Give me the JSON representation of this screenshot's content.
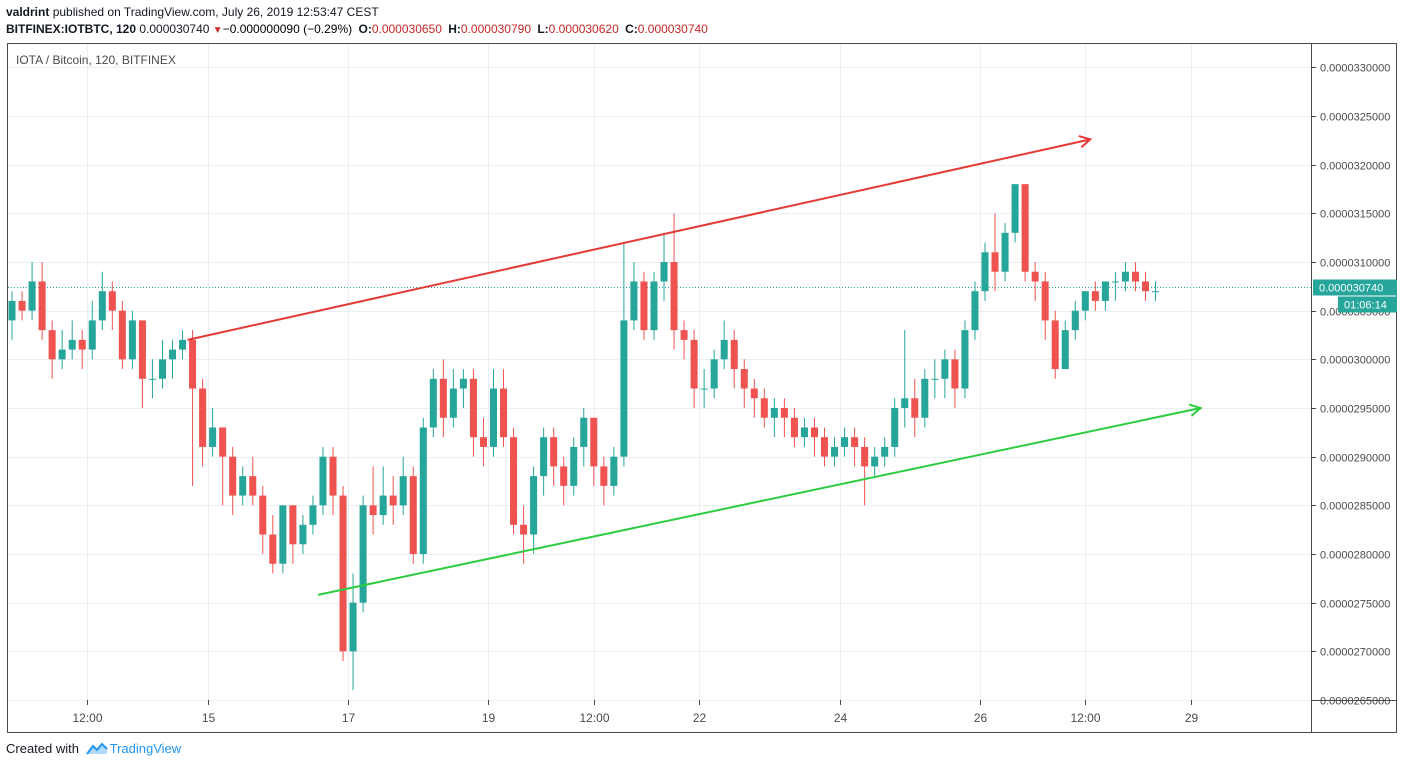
{
  "header": {
    "author": "valdrint",
    "published_text": "published on TradingView.com, July 26, 2019 12:53:47 CEST",
    "symbol": "BITFINEX:IOTBTC, 120",
    "last": "0.000030740",
    "change": "−0.000000090 (−0.29%)",
    "open_label": "O:",
    "open": "0.000030650",
    "high_label": "H:",
    "high": "0.000030790",
    "low_label": "L:",
    "low": "0.000030620",
    "close_label": "C:",
    "close": "0.000030740"
  },
  "footer": {
    "created_with": "Created with",
    "brand": "TradingView"
  },
  "colors": {
    "up": "#26a69a",
    "down": "#ef5350",
    "resistance": "#e53935",
    "support": "#2ecc40",
    "grid": "#e9eff3",
    "price_line": "#26a69a"
  },
  "chart_data": {
    "type": "candlestick",
    "title": "IOTA / Bitcoin, 120, BITFINEX",
    "ylim": [
      2.65e-05,
      3.325e-05
    ],
    "x_range": [
      0,
      130
    ],
    "y_ticks": [
      "0.0000265",
      "0.0000270",
      "0.0000275",
      "0.0000280",
      "0.0000285",
      "0.0000290",
      "0.0000295",
      "0.0000300",
      "0.0000305",
      "0.0000310",
      "0.0000315",
      "0.0000320",
      "0.0000325",
      "0.0000330"
    ],
    "y_tick_labels": [
      "0.0000265000",
      "0.0000270000",
      "0.0000275000",
      "0.0000280000",
      "0.0000285000",
      "0.0000290000",
      "0.0000295000",
      "0.0000300000",
      "0.0000305000",
      "0.0000310000",
      "0.0000315000",
      "0.0000320000",
      "0.0000325000",
      "0.0000330000"
    ],
    "x_ticks": [
      {
        "index": 8,
        "label": "12:00"
      },
      {
        "index": 20,
        "label": "15"
      },
      {
        "index": 34,
        "label": "17"
      },
      {
        "index": 48,
        "label": "19"
      },
      {
        "index": 58.5,
        "label": "12:00"
      },
      {
        "index": 69,
        "label": "22"
      },
      {
        "index": 83,
        "label": "24"
      },
      {
        "index": 97,
        "label": "26"
      },
      {
        "index": 107.5,
        "label": "12:00"
      },
      {
        "index": 118,
        "label": "29"
      }
    ],
    "last_price": 3.074e-05,
    "last_price_label": "0.000030740",
    "countdown": "01:06:14",
    "candles": [
      [
        3.04e-05,
        3.06e-05,
        3.02e-05,
        3.07e-05
      ],
      [
        3.06e-05,
        3.05e-05,
        3.04e-05,
        3.07e-05
      ],
      [
        3.05e-05,
        3.08e-05,
        3.04e-05,
        3.1e-05
      ],
      [
        3.08e-05,
        3.03e-05,
        3.02e-05,
        3.1e-05
      ],
      [
        3.03e-05,
        3e-05,
        2.98e-05,
        3.04e-05
      ],
      [
        3e-05,
        3.01e-05,
        2.99e-05,
        3.03e-05
      ],
      [
        3.01e-05,
        3.02e-05,
        3e-05,
        3.04e-05
      ],
      [
        3.02e-05,
        3.01e-05,
        2.99e-05,
        3.03e-05
      ],
      [
        3.01e-05,
        3.04e-05,
        3e-05,
        3.06e-05
      ],
      [
        3.04e-05,
        3.07e-05,
        3.03e-05,
        3.09e-05
      ],
      [
        3.07e-05,
        3.05e-05,
        3.03e-05,
        3.08e-05
      ],
      [
        3.05e-05,
        3e-05,
        2.99e-05,
        3.06e-05
      ],
      [
        3e-05,
        3.04e-05,
        2.99e-05,
        3.05e-05
      ],
      [
        3.04e-05,
        2.98e-05,
        2.95e-05,
        3.04e-05
      ],
      [
        2.98e-05,
        2.98e-05,
        2.96e-05,
        3e-05
      ],
      [
        2.98e-05,
        3e-05,
        2.97e-05,
        3.02e-05
      ],
      [
        3e-05,
        3.01e-05,
        2.98e-05,
        3.02e-05
      ],
      [
        3.01e-05,
        3.02e-05,
        3e-05,
        3.03e-05
      ],
      [
        3.02e-05,
        2.97e-05,
        2.87e-05,
        3.03e-05
      ],
      [
        2.97e-05,
        2.91e-05,
        2.89e-05,
        2.98e-05
      ],
      [
        2.91e-05,
        2.93e-05,
        2.9e-05,
        2.95e-05
      ],
      [
        2.93e-05,
        2.9e-05,
        2.85e-05,
        2.93e-05
      ],
      [
        2.9e-05,
        2.86e-05,
        2.84e-05,
        2.91e-05
      ],
      [
        2.86e-05,
        2.88e-05,
        2.85e-05,
        2.89e-05
      ],
      [
        2.88e-05,
        2.86e-05,
        2.85e-05,
        2.9e-05
      ],
      [
        2.86e-05,
        2.82e-05,
        2.8e-05,
        2.87e-05
      ],
      [
        2.82e-05,
        2.79e-05,
        2.78e-05,
        2.84e-05
      ],
      [
        2.79e-05,
        2.85e-05,
        2.78e-05,
        2.85e-05
      ],
      [
        2.85e-05,
        2.81e-05,
        2.79e-05,
        2.85e-05
      ],
      [
        2.81e-05,
        2.83e-05,
        2.8e-05,
        2.84e-05
      ],
      [
        2.83e-05,
        2.85e-05,
        2.82e-05,
        2.86e-05
      ],
      [
        2.85e-05,
        2.9e-05,
        2.84e-05,
        2.91e-05
      ],
      [
        2.9e-05,
        2.86e-05,
        2.84e-05,
        2.91e-05
      ],
      [
        2.86e-05,
        2.7e-05,
        2.69e-05,
        2.87e-05
      ],
      [
        2.7e-05,
        2.75e-05,
        2.66e-05,
        2.78e-05
      ],
      [
        2.75e-05,
        2.85e-05,
        2.74e-05,
        2.86e-05
      ],
      [
        2.85e-05,
        2.84e-05,
        2.82e-05,
        2.89e-05
      ],
      [
        2.84e-05,
        2.86e-05,
        2.83e-05,
        2.89e-05
      ],
      [
        2.86e-05,
        2.85e-05,
        2.83e-05,
        2.88e-05
      ],
      [
        2.85e-05,
        2.88e-05,
        2.84e-05,
        2.9e-05
      ],
      [
        2.88e-05,
        2.8e-05,
        2.79e-05,
        2.89e-05
      ],
      [
        2.8e-05,
        2.93e-05,
        2.79e-05,
        2.94e-05
      ],
      [
        2.93e-05,
        2.98e-05,
        2.92e-05,
        2.99e-05
      ],
      [
        2.98e-05,
        2.94e-05,
        2.92e-05,
        3e-05
      ],
      [
        2.94e-05,
        2.97e-05,
        2.93e-05,
        2.99e-05
      ],
      [
        2.97e-05,
        2.98e-05,
        2.95e-05,
        2.99e-05
      ],
      [
        2.98e-05,
        2.92e-05,
        2.9e-05,
        2.99e-05
      ],
      [
        2.92e-05,
        2.91e-05,
        2.89e-05,
        2.94e-05
      ],
      [
        2.91e-05,
        2.97e-05,
        2.9e-05,
        2.99e-05
      ],
      [
        2.97e-05,
        2.92e-05,
        2.91e-05,
        2.99e-05
      ],
      [
        2.92e-05,
        2.83e-05,
        2.82e-05,
        2.93e-05
      ],
      [
        2.83e-05,
        2.82e-05,
        2.79e-05,
        2.85e-05
      ],
      [
        2.82e-05,
        2.88e-05,
        2.8e-05,
        2.89e-05
      ],
      [
        2.88e-05,
        2.92e-05,
        2.86e-05,
        2.93e-05
      ],
      [
        2.92e-05,
        2.89e-05,
        2.87e-05,
        2.93e-05
      ],
      [
        2.89e-05,
        2.87e-05,
        2.85e-05,
        2.9e-05
      ],
      [
        2.87e-05,
        2.91e-05,
        2.86e-05,
        2.92e-05
      ],
      [
        2.91e-05,
        2.94e-05,
        2.89e-05,
        2.95e-05
      ],
      [
        2.94e-05,
        2.89e-05,
        2.87e-05,
        2.94e-05
      ],
      [
        2.89e-05,
        2.87e-05,
        2.85e-05,
        2.9e-05
      ],
      [
        2.87e-05,
        2.9e-05,
        2.86e-05,
        2.91e-05
      ],
      [
        2.9e-05,
        3.04e-05,
        2.89e-05,
        3.12e-05
      ],
      [
        3.04e-05,
        3.08e-05,
        3.03e-05,
        3.1e-05
      ],
      [
        3.08e-05,
        3.03e-05,
        3.02e-05,
        3.09e-05
      ],
      [
        3.03e-05,
        3.08e-05,
        3.02e-05,
        3.09e-05
      ],
      [
        3.08e-05,
        3.1e-05,
        3.06e-05,
        3.13e-05
      ],
      [
        3.1e-05,
        3.03e-05,
        3.01e-05,
        3.15e-05
      ],
      [
        3.03e-05,
        3.02e-05,
        3e-05,
        3.04e-05
      ],
      [
        3.02e-05,
        2.97e-05,
        2.95e-05,
        3.03e-05
      ],
      [
        2.97e-05,
        2.97e-05,
        2.95e-05,
        2.99e-05
      ],
      [
        2.97e-05,
        3e-05,
        2.96e-05,
        3.01e-05
      ],
      [
        3e-05,
        3.02e-05,
        2.99e-05,
        3.04e-05
      ],
      [
        3.02e-05,
        2.99e-05,
        2.97e-05,
        3.03e-05
      ],
      [
        2.99e-05,
        2.97e-05,
        2.95e-05,
        3e-05
      ],
      [
        2.97e-05,
        2.96e-05,
        2.94e-05,
        2.98e-05
      ],
      [
        2.96e-05,
        2.94e-05,
        2.93e-05,
        2.97e-05
      ],
      [
        2.94e-05,
        2.95e-05,
        2.92e-05,
        2.96e-05
      ],
      [
        2.95e-05,
        2.94e-05,
        2.92e-05,
        2.96e-05
      ],
      [
        2.94e-05,
        2.92e-05,
        2.91e-05,
        2.95e-05
      ],
      [
        2.92e-05,
        2.93e-05,
        2.91e-05,
        2.94e-05
      ],
      [
        2.93e-05,
        2.92e-05,
        2.9e-05,
        2.94e-05
      ],
      [
        2.92e-05,
        2.9e-05,
        2.89e-05,
        2.93e-05
      ],
      [
        2.9e-05,
        2.91e-05,
        2.89e-05,
        2.92e-05
      ],
      [
        2.91e-05,
        2.92e-05,
        2.9e-05,
        2.93e-05
      ],
      [
        2.92e-05,
        2.91e-05,
        2.89e-05,
        2.93e-05
      ],
      [
        2.91e-05,
        2.89e-05,
        2.85e-05,
        2.92e-05
      ],
      [
        2.89e-05,
        2.9e-05,
        2.88e-05,
        2.91e-05
      ],
      [
        2.9e-05,
        2.91e-05,
        2.89e-05,
        2.92e-05
      ],
      [
        2.91e-05,
        2.95e-05,
        2.9e-05,
        2.96e-05
      ],
      [
        2.95e-05,
        2.96e-05,
        2.93e-05,
        3.03e-05
      ],
      [
        2.96e-05,
        2.94e-05,
        2.92e-05,
        2.98e-05
      ],
      [
        2.94e-05,
        2.98e-05,
        2.93e-05,
        2.99e-05
      ],
      [
        2.98e-05,
        2.98e-05,
        2.96e-05,
        3e-05
      ],
      [
        2.98e-05,
        3e-05,
        2.96e-05,
        3.01e-05
      ],
      [
        3e-05,
        2.97e-05,
        2.95e-05,
        3.01e-05
      ],
      [
        2.97e-05,
        3.03e-05,
        2.96e-05,
        3.04e-05
      ],
      [
        3.03e-05,
        3.07e-05,
        3.02e-05,
        3.08e-05
      ],
      [
        3.07e-05,
        3.11e-05,
        3.06e-05,
        3.12e-05
      ],
      [
        3.11e-05,
        3.09e-05,
        3.07e-05,
        3.15e-05
      ],
      [
        3.09e-05,
        3.13e-05,
        3.08e-05,
        3.14e-05
      ],
      [
        3.13e-05,
        3.18e-05,
        3.12e-05,
        3.18e-05
      ],
      [
        3.18e-05,
        3.09e-05,
        3.08e-05,
        3.18e-05
      ],
      [
        3.09e-05,
        3.08e-05,
        3.06e-05,
        3.1e-05
      ],
      [
        3.08e-05,
        3.04e-05,
        3.02e-05,
        3.09e-05
      ],
      [
        3.04e-05,
        2.99e-05,
        2.98e-05,
        3.05e-05
      ],
      [
        2.99e-05,
        3.03e-05,
        2.99e-05,
        3.04e-05
      ],
      [
        3.03e-05,
        3.05e-05,
        3.02e-05,
        3.06e-05
      ],
      [
        3.05e-05,
        3.07e-05,
        3.04e-05,
        3.07e-05
      ],
      [
        3.07e-05,
        3.06e-05,
        3.05e-05,
        3.08e-05
      ],
      [
        3.06e-05,
        3.08e-05,
        3.05e-05,
        3.08e-05
      ],
      [
        3.08e-05,
        3.08e-05,
        3.06e-05,
        3.09e-05
      ],
      [
        3.08e-05,
        3.09e-05,
        3.07e-05,
        3.1e-05
      ],
      [
        3.09e-05,
        3.08e-05,
        3.07e-05,
        3.1e-05
      ],
      [
        3.08e-05,
        3.07e-05,
        3.06e-05,
        3.09e-05
      ],
      [
        3.07e-05,
        3.07e-05,
        3.06e-05,
        3.08e-05
      ]
    ],
    "trendlines": [
      {
        "name": "resistance",
        "color": "#e53935",
        "x1": 18,
        "y1": 3.02e-05,
        "x2": 108,
        "y2": 3.226e-05
      },
      {
        "name": "support",
        "color": "#2ecc40",
        "x1": 31,
        "y1": 2.758e-05,
        "x2": 119,
        "y2": 2.95e-05
      }
    ]
  }
}
